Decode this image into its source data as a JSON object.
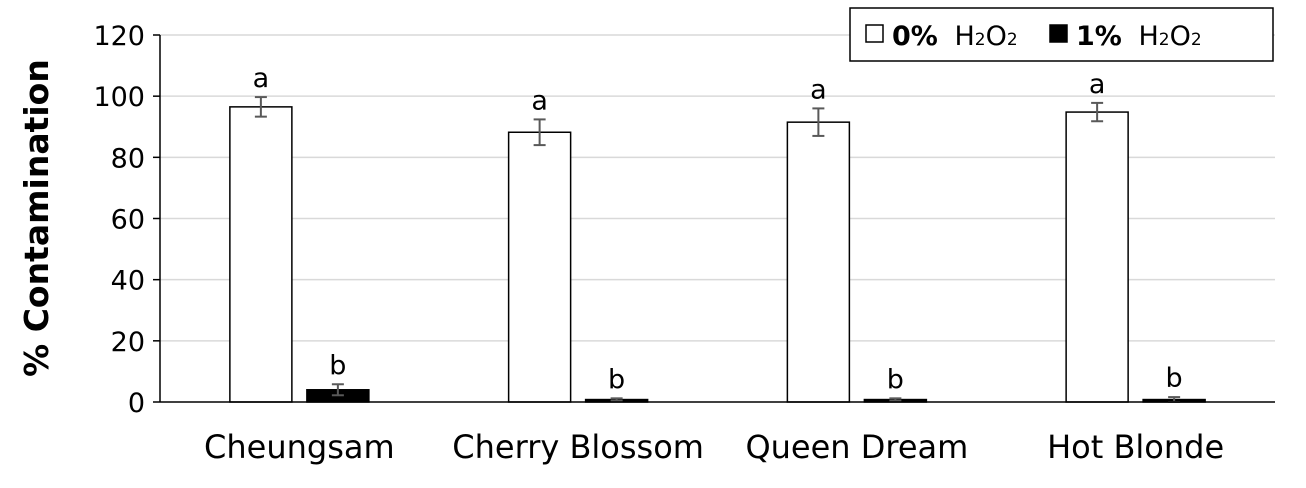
{
  "chart_data": {
    "type": "bar",
    "title": "",
    "xlabel": "",
    "ylabel": "% Contamination",
    "ylim": [
      0,
      120
    ],
    "yticks": [
      0,
      20,
      40,
      60,
      80,
      100,
      120
    ],
    "grid": true,
    "legend_position": "top-right",
    "categories": [
      "Cheungsam",
      "Cherry Blossom",
      "Queen Dream",
      "Hot Blonde"
    ],
    "series": [
      {
        "name_pct": "0%",
        "name_chem": [
          "H",
          "2",
          "O",
          "2"
        ],
        "color": "#ffffff",
        "values": [
          96.5,
          88.2,
          91.5,
          94.8
        ],
        "errors": [
          3.2,
          4.2,
          4.5,
          3.0
        ],
        "letters": [
          "a",
          "a",
          "a",
          "a"
        ]
      },
      {
        "name_pct": "1%",
        "name_chem": [
          "H",
          "2",
          "O",
          "2"
        ],
        "color": "#000000",
        "values": [
          4.0,
          0.8,
          0.8,
          0.8
        ],
        "errors": [
          1.8,
          0.4,
          0.4,
          0.8
        ],
        "letters": [
          "b",
          "b",
          "b",
          "b"
        ]
      }
    ]
  }
}
